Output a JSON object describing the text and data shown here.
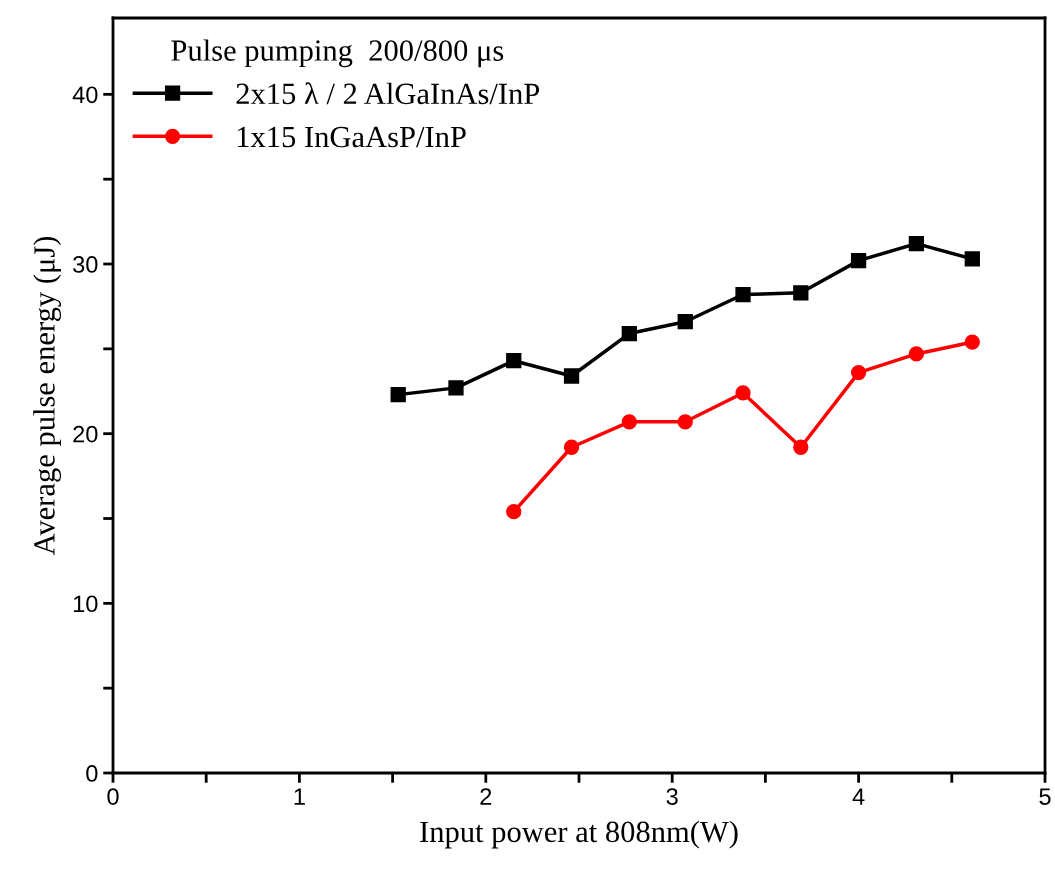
{
  "chart_data": {
    "type": "line",
    "xlabel": "Input power at 808nm(W)",
    "ylabel": "Average pulse energy (μJ)",
    "legend_title": "Pulse pumping  200/800 μs",
    "x": [
      1.53,
      1.84,
      2.15,
      2.46,
      2.77,
      3.07,
      3.38,
      3.69,
      4.0,
      4.31,
      4.61
    ],
    "series": [
      {
        "name": "2x15 λ / 2 AlGaInAs/InP",
        "color": "#000000",
        "marker": "square",
        "values": [
          22.3,
          22.7,
          24.3,
          23.4,
          25.9,
          26.6,
          28.2,
          28.3,
          30.2,
          31.2,
          30.3
        ]
      },
      {
        "name": "1x15 InGaAsP/InP",
        "color": "#ff0000",
        "marker": "circle",
        "values": [
          null,
          null,
          15.4,
          19.2,
          20.7,
          20.7,
          22.4,
          19.2,
          23.6,
          24.7,
          25.4
        ]
      }
    ],
    "xlim": [
      0,
      5
    ],
    "ylim": [
      0,
      44.5
    ],
    "xticks": [
      0,
      {
        "value": 0.5,
        "label": null
      },
      1,
      {
        "value": 1.5,
        "label": null
      },
      2,
      {
        "value": 2.5,
        "label": null
      },
      3,
      {
        "value": 3.5,
        "label": null
      },
      4,
      {
        "value": 4.5,
        "label": null
      },
      5
    ],
    "yticks": [
      0,
      {
        "value": 5,
        "label": null
      },
      10,
      {
        "value": 15,
        "label": null
      },
      20,
      {
        "value": 25,
        "label": null
      },
      30,
      {
        "value": 35,
        "label": null
      },
      40
    ],
    "grid": false,
    "legend": "top left",
    "line_style": "solid"
  }
}
